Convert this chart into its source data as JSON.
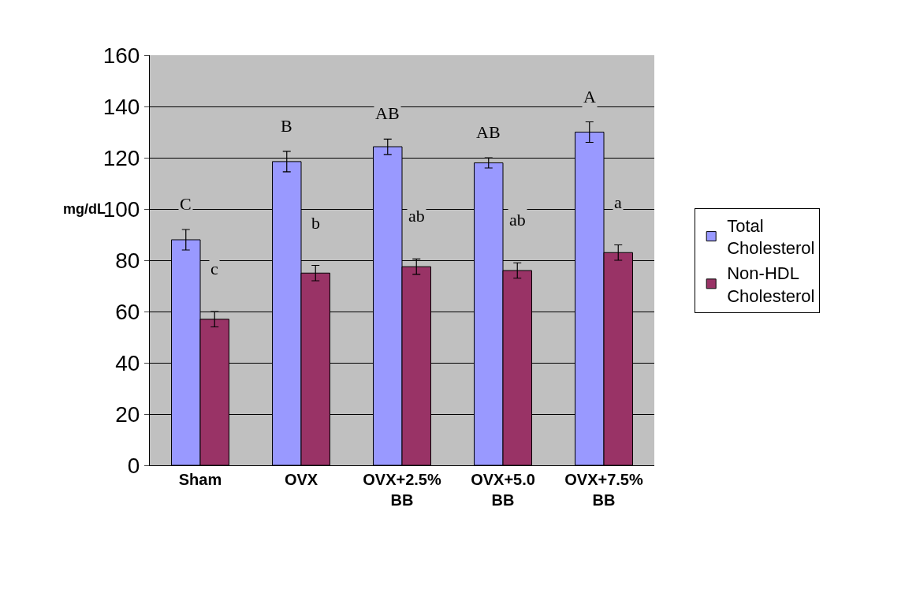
{
  "chart_data": {
    "type": "bar",
    "ylabel": "mg/dL",
    "categories": [
      "Sham",
      "OVX",
      "OVX+2.5% BB",
      "OVX+5.0 BB",
      "OVX+7.5% BB"
    ],
    "series": [
      {
        "name": "Total Cholesterol",
        "color": "#9999ff",
        "values": [
          88,
          118.5,
          124.3,
          118,
          130
        ],
        "errors": [
          4,
          4,
          3,
          2,
          4
        ]
      },
      {
        "name": "Non-HDL Cholesterol",
        "color": "#993366",
        "values": [
          57,
          75,
          77.5,
          76,
          83
        ],
        "errors": [
          3,
          3,
          3,
          3,
          3
        ]
      }
    ],
    "ylim": [
      0,
      160
    ],
    "yticks": [
      0,
      20,
      40,
      60,
      80,
      100,
      120,
      140,
      160
    ],
    "grid": "y",
    "legend": "right",
    "annotations": [
      "C",
      "B",
      "AB",
      "AB",
      "A",
      "c",
      "b",
      "ab",
      "ab",
      "a"
    ]
  }
}
